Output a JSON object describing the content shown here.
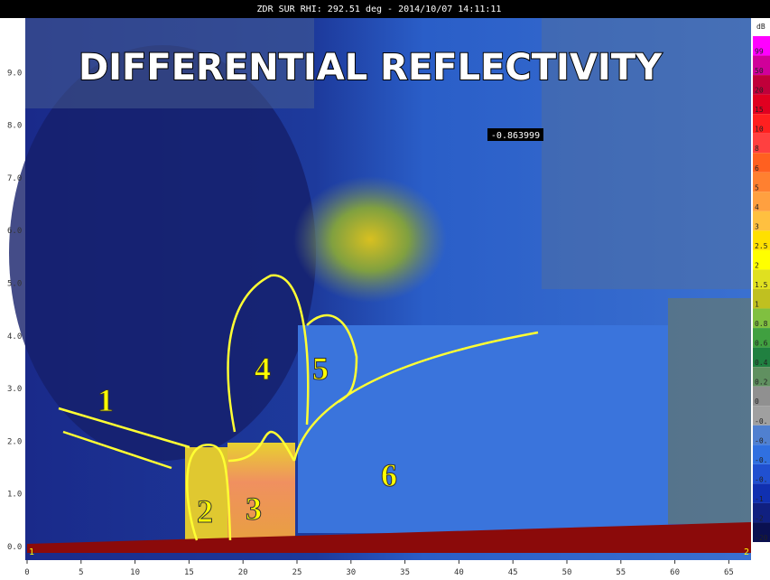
{
  "header": {
    "text": "ZDR SUR  RHI: 292.51 deg  -  2014/10/07 14:11:11"
  },
  "title": "DIFFERENTIAL REFLECTIVITY",
  "readout": "-0.863999",
  "regions": [
    "1",
    "2",
    "3",
    "4",
    "5",
    "6"
  ],
  "x_axis": {
    "ticks": [
      "0",
      "5",
      "10",
      "15",
      "20",
      "25",
      "30",
      "35",
      "40",
      "45",
      "50",
      "55",
      "60",
      "65"
    ]
  },
  "y_axis": {
    "ticks": [
      "0.0",
      "1.0",
      "2.0",
      "3.0",
      "4.0",
      "5.0",
      "6.0",
      "7.0",
      "8.0",
      "9.0"
    ]
  },
  "corner_markers": [
    "1",
    "2"
  ],
  "colorbar": {
    "unit": "dB",
    "entries": [
      {
        "label": "99",
        "color": "#ff00ff"
      },
      {
        "label": "50",
        "color": "#d0009a"
      },
      {
        "label": "20",
        "color": "#c0003a"
      },
      {
        "label": "15",
        "color": "#e00020"
      },
      {
        "label": "10",
        "color": "#ff2020"
      },
      {
        "label": "8",
        "color": "#ff4040"
      },
      {
        "label": "6",
        "color": "#ff6020"
      },
      {
        "label": "5",
        "color": "#ff8030"
      },
      {
        "label": "4",
        "color": "#ffa040"
      },
      {
        "label": "3",
        "color": "#ffc040"
      },
      {
        "label": "2.5",
        "color": "#ffe000"
      },
      {
        "label": "2",
        "color": "#ffff00"
      },
      {
        "label": "1.5",
        "color": "#e0e020"
      },
      {
        "label": "1",
        "color": "#c0c020"
      },
      {
        "label": "0.8",
        "color": "#80c040"
      },
      {
        "label": "0.6",
        "color": "#40a040"
      },
      {
        "label": "0.4",
        "color": "#208040"
      },
      {
        "label": "0.2",
        "color": "#609060"
      },
      {
        "label": "0",
        "color": "#909090"
      },
      {
        "label": "-0.",
        "color": "#a0a0a0"
      },
      {
        "label": "-0.",
        "color": "#5080d0"
      },
      {
        "label": "-0.",
        "color": "#3070e0"
      },
      {
        "label": "-0.",
        "color": "#2050d0"
      },
      {
        "label": "-1",
        "color": "#1030b0"
      },
      {
        "label": "-2",
        "color": "#102080"
      },
      {
        "label": "-20",
        "color": "#0a1050"
      }
    ]
  }
}
